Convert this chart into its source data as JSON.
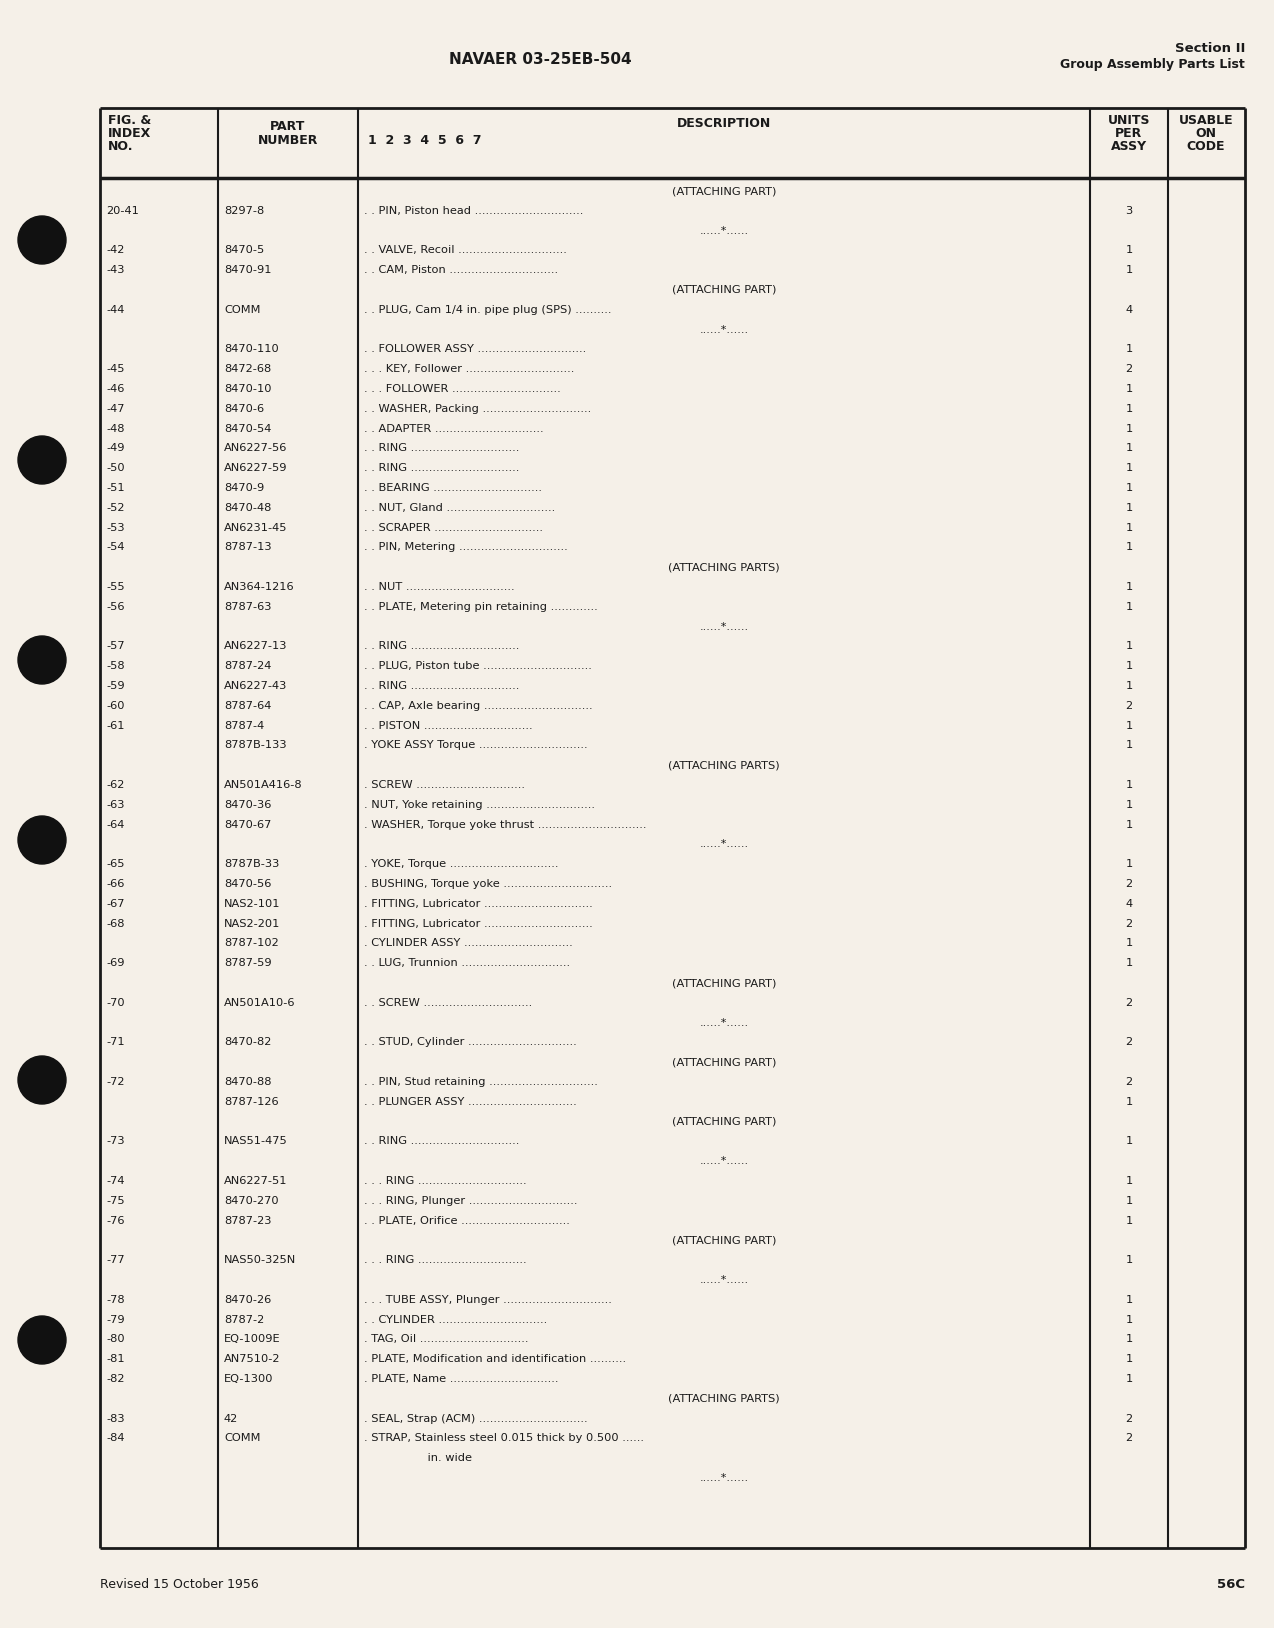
{
  "page_bg": "#f5f0e8",
  "header_title": "NAVAER 03-25EB-504",
  "header_right1": "Section II",
  "header_right2": "Group Assembly Parts List",
  "footer_left": "Revised 15 October 1956",
  "footer_right": "56C",
  "rows": [
    {
      "fig": "",
      "part": "",
      "desc": "(ATTACHING PART)",
      "units": "",
      "center_desc": true
    },
    {
      "fig": "20-41",
      "part": "8297-8",
      "desc": ". . PIN, Piston head ..............................",
      "units": "3"
    },
    {
      "fig": "",
      "part": "",
      "desc": "......*......",
      "units": ""
    },
    {
      "fig": "-42",
      "part": "8470-5",
      "desc": ". . VALVE, Recoil ..............................",
      "units": "1"
    },
    {
      "fig": "-43",
      "part": "8470-91",
      "desc": ". . CAM, Piston ..............................",
      "units": "1"
    },
    {
      "fig": "",
      "part": "",
      "desc": "(ATTACHING PART)",
      "units": "",
      "center_desc": true
    },
    {
      "fig": "-44",
      "part": "COMM",
      "desc": ". . PLUG, Cam 1/4 in. pipe plug (SPS) ..........",
      "units": "4"
    },
    {
      "fig": "",
      "part": "",
      "desc": "......*......",
      "units": ""
    },
    {
      "fig": "",
      "part": "8470-110",
      "desc": ". . FOLLOWER ASSY ..............................",
      "units": "1"
    },
    {
      "fig": "-45",
      "part": "8472-68",
      "desc": ". . . KEY, Follower ..............................",
      "units": "2"
    },
    {
      "fig": "-46",
      "part": "8470-10",
      "desc": ". . . FOLLOWER ..............................",
      "units": "1"
    },
    {
      "fig": "-47",
      "part": "8470-6",
      "desc": ". . WASHER, Packing ..............................",
      "units": "1"
    },
    {
      "fig": "-48",
      "part": "8470-54",
      "desc": ". . ADAPTER ..............................",
      "units": "1"
    },
    {
      "fig": "-49",
      "part": "AN6227-56",
      "desc": ". . RING ..............................",
      "units": "1"
    },
    {
      "fig": "-50",
      "part": "AN6227-59",
      "desc": ". . RING ..............................",
      "units": "1"
    },
    {
      "fig": "-51",
      "part": "8470-9",
      "desc": ". . BEARING ..............................",
      "units": "1"
    },
    {
      "fig": "-52",
      "part": "8470-48",
      "desc": ". . NUT, Gland ..............................",
      "units": "1"
    },
    {
      "fig": "-53",
      "part": "AN6231-45",
      "desc": ". . SCRAPER ..............................",
      "units": "1"
    },
    {
      "fig": "-54",
      "part": "8787-13",
      "desc": ". . PIN, Metering ..............................",
      "units": "1"
    },
    {
      "fig": "",
      "part": "",
      "desc": "(ATTACHING PARTS)",
      "units": "",
      "center_desc": true
    },
    {
      "fig": "-55",
      "part": "AN364-1216",
      "desc": ". . NUT ..............................",
      "units": "1"
    },
    {
      "fig": "-56",
      "part": "8787-63",
      "desc": ". . PLATE, Metering pin retaining .............",
      "units": "1"
    },
    {
      "fig": "",
      "part": "",
      "desc": "......*......",
      "units": ""
    },
    {
      "fig": "-57",
      "part": "AN6227-13",
      "desc": ". . RING ..............................",
      "units": "1"
    },
    {
      "fig": "-58",
      "part": "8787-24",
      "desc": ". . PLUG, Piston tube ..............................",
      "units": "1"
    },
    {
      "fig": "-59",
      "part": "AN6227-43",
      "desc": ". . RING ..............................",
      "units": "1"
    },
    {
      "fig": "-60",
      "part": "8787-64",
      "desc": ". . CAP, Axle bearing ..............................",
      "units": "2"
    },
    {
      "fig": "-61",
      "part": "8787-4",
      "desc": ". . PISTON ..............................",
      "units": "1"
    },
    {
      "fig": "",
      "part": "8787B-133",
      "desc": ". YOKE ASSY Torque ..............................",
      "units": "1"
    },
    {
      "fig": "",
      "part": "",
      "desc": "(ATTACHING PARTS)",
      "units": "",
      "center_desc": true
    },
    {
      "fig": "-62",
      "part": "AN501A416-8",
      "desc": ". SCREW ..............................",
      "units": "1"
    },
    {
      "fig": "-63",
      "part": "8470-36",
      "desc": ". NUT, Yoke retaining ..............................",
      "units": "1"
    },
    {
      "fig": "-64",
      "part": "8470-67",
      "desc": ". WASHER, Torque yoke thrust ..............................",
      "units": "1"
    },
    {
      "fig": "",
      "part": "",
      "desc": "......*......",
      "units": ""
    },
    {
      "fig": "-65",
      "part": "8787B-33",
      "desc": ". YOKE, Torque ..............................",
      "units": "1"
    },
    {
      "fig": "-66",
      "part": "8470-56",
      "desc": ". BUSHING, Torque yoke ..............................",
      "units": "2"
    },
    {
      "fig": "-67",
      "part": "NAS2-101",
      "desc": ". FITTING, Lubricator ..............................",
      "units": "4"
    },
    {
      "fig": "-68",
      "part": "NAS2-201",
      "desc": ". FITTING, Lubricator ..............................",
      "units": "2"
    },
    {
      "fig": "",
      "part": "8787-102",
      "desc": ". CYLINDER ASSY ..............................",
      "units": "1"
    },
    {
      "fig": "-69",
      "part": "8787-59",
      "desc": ". . LUG, Trunnion ..............................",
      "units": "1"
    },
    {
      "fig": "",
      "part": "",
      "desc": "(ATTACHING PART)",
      "units": "",
      "center_desc": true
    },
    {
      "fig": "-70",
      "part": "AN501A10-6",
      "desc": ". . SCREW ..............................",
      "units": "2"
    },
    {
      "fig": "",
      "part": "",
      "desc": "......*......",
      "units": ""
    },
    {
      "fig": "-71",
      "part": "8470-82",
      "desc": ". . STUD, Cylinder ..............................",
      "units": "2"
    },
    {
      "fig": "",
      "part": "",
      "desc": "(ATTACHING PART)",
      "units": "",
      "center_desc": true
    },
    {
      "fig": "-72",
      "part": "8470-88",
      "desc": ". . PIN, Stud retaining ..............................",
      "units": "2"
    },
    {
      "fig": "",
      "part": "8787-126",
      "desc": ". . PLUNGER ASSY ..............................",
      "units": "1"
    },
    {
      "fig": "",
      "part": "",
      "desc": "(ATTACHING PART)",
      "units": "",
      "center_desc": true
    },
    {
      "fig": "-73",
      "part": "NAS51-475",
      "desc": ". . RING ..............................",
      "units": "1"
    },
    {
      "fig": "",
      "part": "",
      "desc": "......*......",
      "units": ""
    },
    {
      "fig": "-74",
      "part": "AN6227-51",
      "desc": ". . . RING ..............................",
      "units": "1"
    },
    {
      "fig": "-75",
      "part": "8470-270",
      "desc": ". . . RING, Plunger ..............................",
      "units": "1"
    },
    {
      "fig": "-76",
      "part": "8787-23",
      "desc": ". . PLATE, Orifice ..............................",
      "units": "1"
    },
    {
      "fig": "",
      "part": "",
      "desc": "(ATTACHING PART)",
      "units": "",
      "center_desc": true
    },
    {
      "fig": "-77",
      "part": "NAS50-325N",
      "desc": ". . . RING ..............................",
      "units": "1"
    },
    {
      "fig": "",
      "part": "",
      "desc": "......*......",
      "units": ""
    },
    {
      "fig": "-78",
      "part": "8470-26",
      "desc": ". . . TUBE ASSY, Plunger ..............................",
      "units": "1"
    },
    {
      "fig": "-79",
      "part": "8787-2",
      "desc": ". . CYLINDER ..............................",
      "units": "1"
    },
    {
      "fig": "-80",
      "part": "EQ-1009E",
      "desc": ". TAG, Oil ..............................",
      "units": "1"
    },
    {
      "fig": "-81",
      "part": "AN7510-2",
      "desc": ". PLATE, Modification and identification ..........",
      "units": "1"
    },
    {
      "fig": "-82",
      "part": "EQ-1300",
      "desc": ". PLATE, Name ..............................",
      "units": "1"
    },
    {
      "fig": "",
      "part": "",
      "desc": "(ATTACHING PARTS)",
      "units": "",
      "center_desc": true
    },
    {
      "fig": "-83",
      "part": "42",
      "desc": ". SEAL, Strap (ACM) ..............................",
      "units": "2"
    },
    {
      "fig": "-84",
      "part": "COMM",
      "desc": ". STRAP, Stainless steel 0.015 thick by 0.500 ......",
      "units": "2"
    },
    {
      "fig": "",
      "part": "",
      "desc": "    in. wide",
      "units": ""
    },
    {
      "fig": "",
      "part": "",
      "desc": "......*......",
      "units": ""
    }
  ]
}
